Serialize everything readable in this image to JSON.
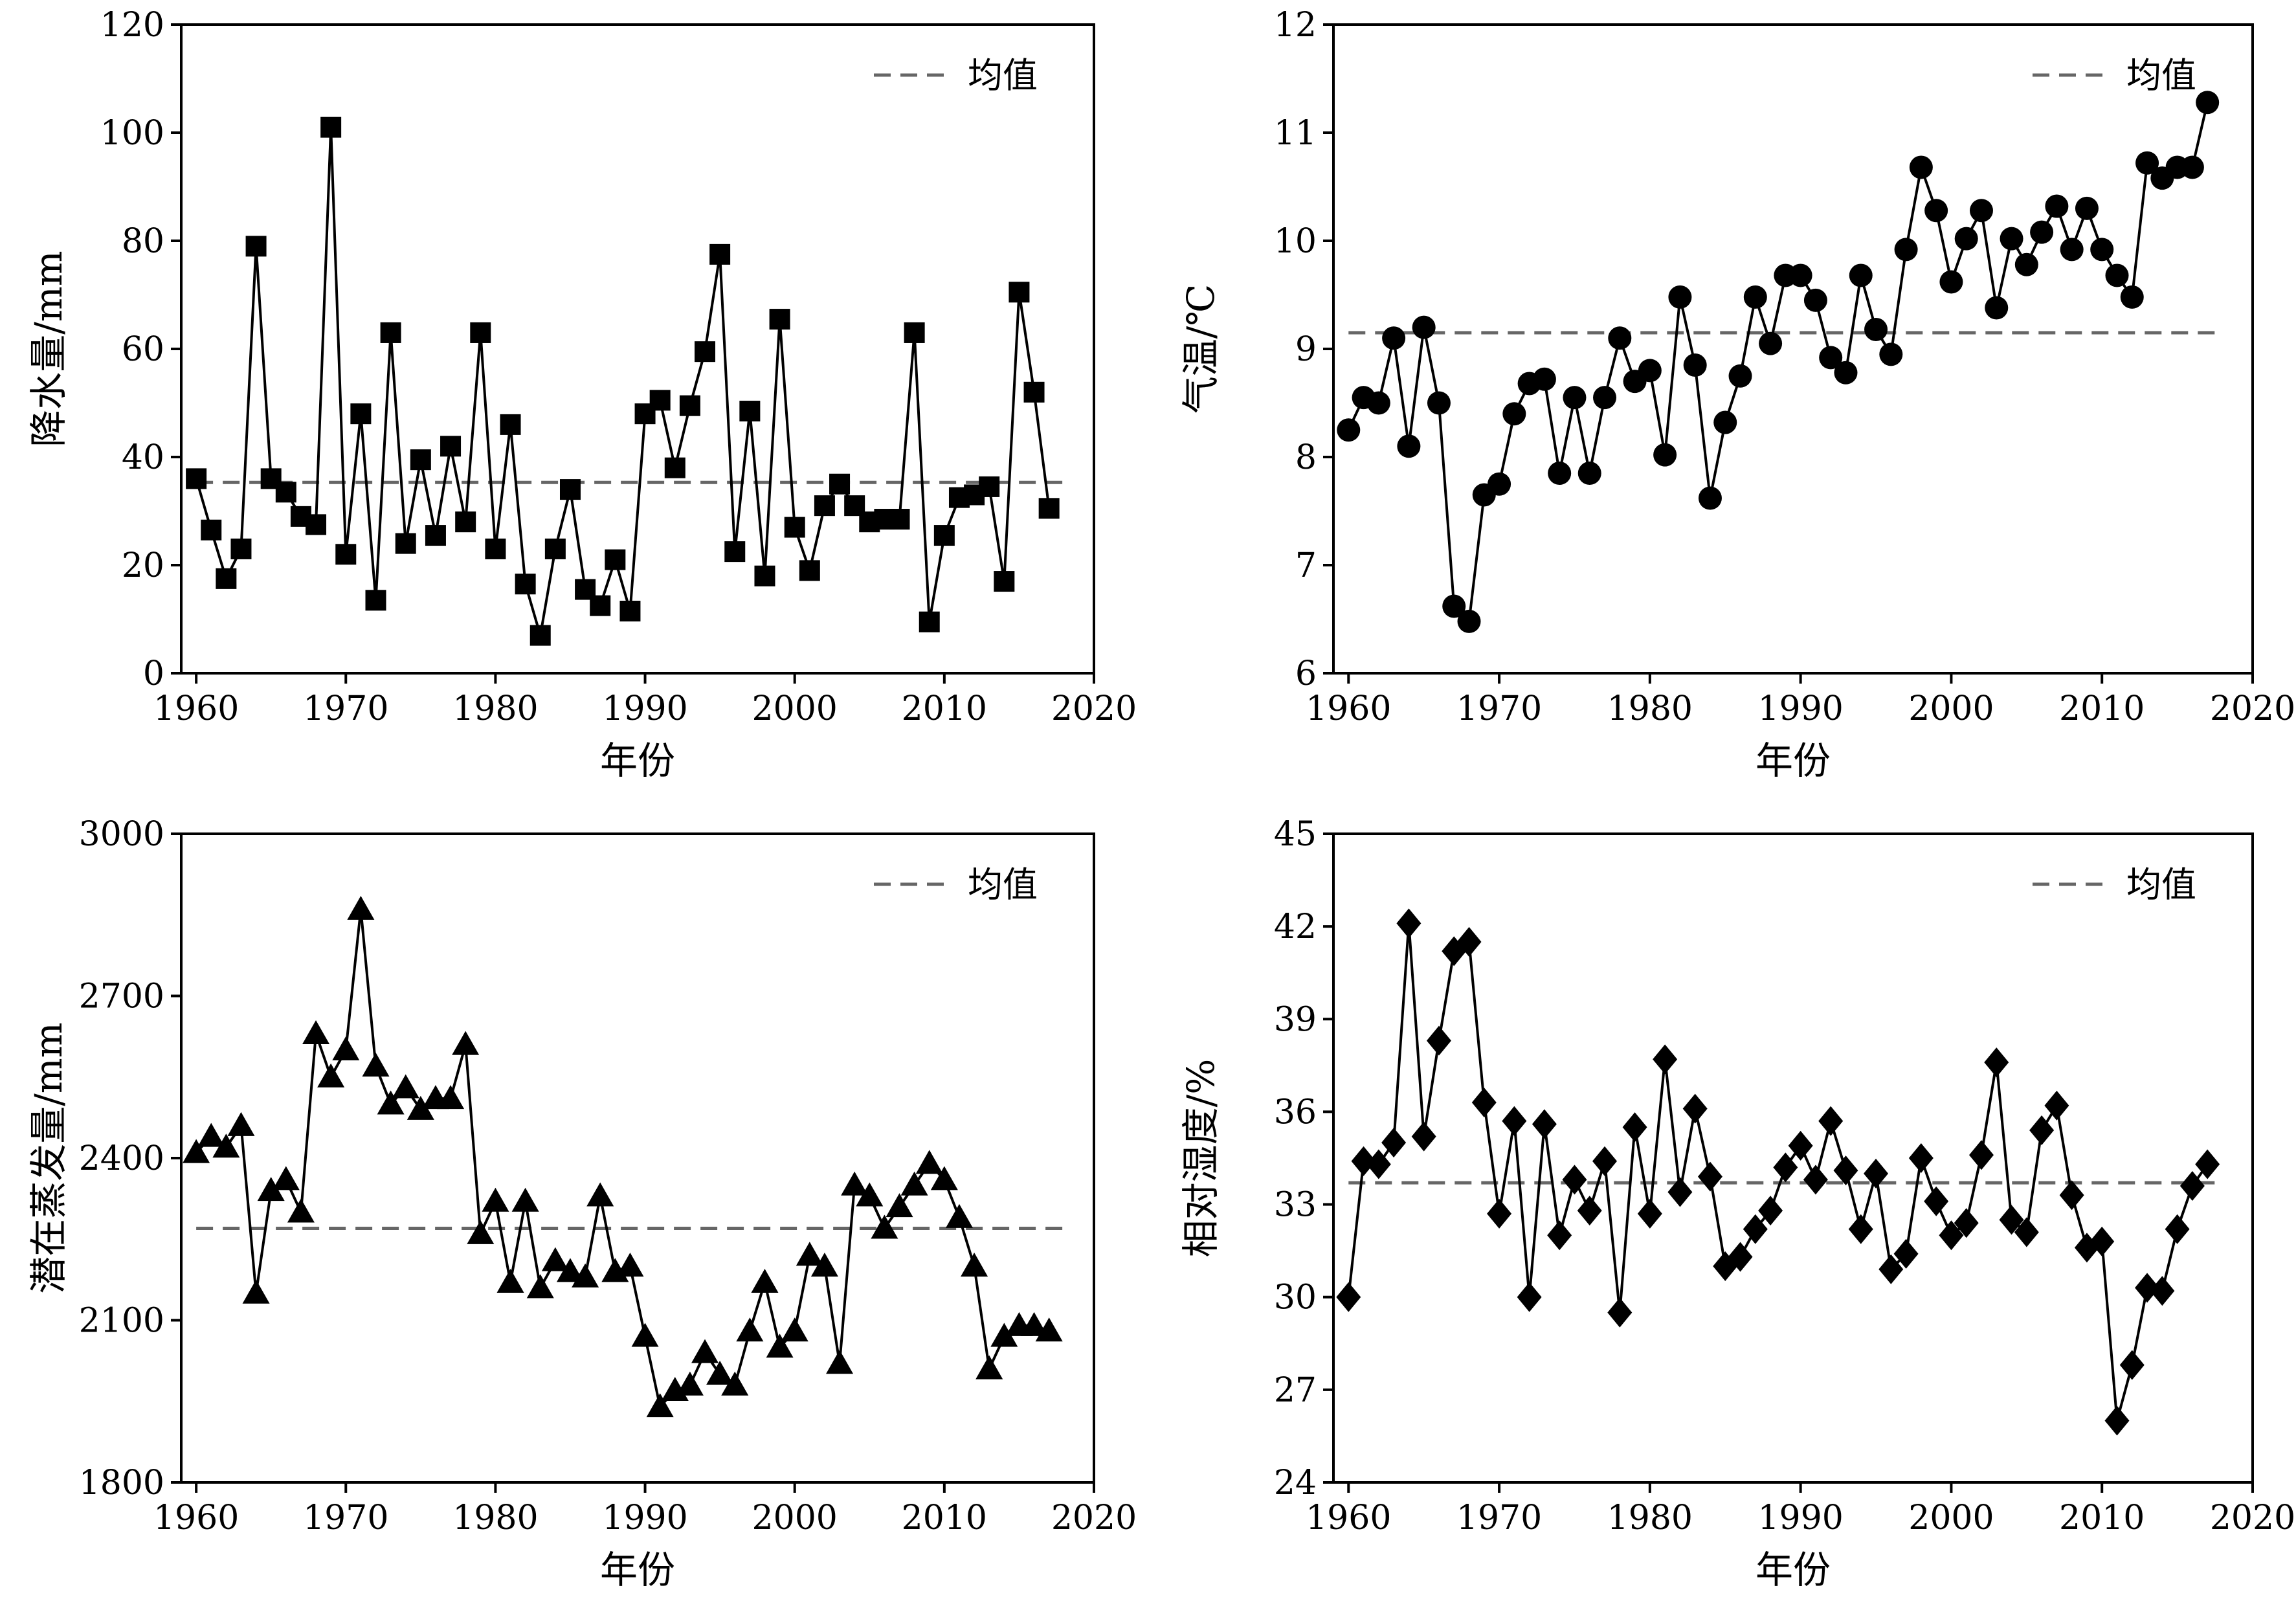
{
  "chart_data": [
    {
      "type": "line",
      "marker": "square",
      "ylabel": "降水量/mm",
      "xlabel": "年份",
      "xlim": [
        1959,
        2020
      ],
      "ylim": [
        0,
        120
      ],
      "xticks": [
        1960,
        1970,
        1980,
        1990,
        2000,
        2010,
        2020
      ],
      "yticks": [
        0,
        20,
        40,
        60,
        80,
        100,
        120
      ],
      "legend": {
        "label": "均值",
        "position": "top-right",
        "style": "dashed"
      },
      "mean": 35.3,
      "grid": false,
      "x": [
        1960,
        1961,
        1962,
        1963,
        1964,
        1965,
        1966,
        1967,
        1968,
        1969,
        1970,
        1971,
        1972,
        1973,
        1974,
        1975,
        1976,
        1977,
        1978,
        1979,
        1980,
        1981,
        1982,
        1983,
        1984,
        1985,
        1986,
        1987,
        1988,
        1989,
        1990,
        1991,
        1992,
        1993,
        1994,
        1995,
        1996,
        1997,
        1998,
        1999,
        2000,
        2001,
        2002,
        2003,
        2004,
        2005,
        2006,
        2007,
        2008,
        2009,
        2010,
        2011,
        2012,
        2013,
        2014,
        2015,
        2016,
        2017
      ],
      "values": [
        36,
        26.5,
        17.5,
        23,
        79,
        36,
        33.5,
        29,
        27.5,
        101,
        22,
        48,
        13.5,
        63,
        24,
        39.5,
        25.5,
        42,
        28,
        63,
        23,
        46,
        16.5,
        7,
        23,
        34,
        15.5,
        12.5,
        21,
        11.5,
        48,
        50.5,
        38,
        49.5,
        59.5,
        77.5,
        22.5,
        48.5,
        18,
        65.5,
        27,
        19,
        31,
        35,
        31,
        28,
        28.5,
        28.5,
        63,
        9.5,
        25.5,
        32.5,
        33,
        34.5,
        17,
        70.5,
        52,
        30.5
      ]
    },
    {
      "type": "line",
      "marker": "circle",
      "ylabel": "气温/℃",
      "xlabel": "年份",
      "xlim": [
        1959,
        2020
      ],
      "ylim": [
        6,
        12
      ],
      "xticks": [
        1960,
        1970,
        1980,
        1990,
        2000,
        2010,
        2020
      ],
      "yticks": [
        6,
        7,
        8,
        9,
        10,
        11,
        12
      ],
      "legend": {
        "label": "均值",
        "position": "top-right",
        "style": "dashed"
      },
      "mean": 9.15,
      "grid": false,
      "x": [
        1960,
        1961,
        1962,
        1963,
        1964,
        1965,
        1966,
        1967,
        1968,
        1969,
        1970,
        1971,
        1972,
        1973,
        1974,
        1975,
        1976,
        1977,
        1978,
        1979,
        1980,
        1981,
        1982,
        1983,
        1984,
        1985,
        1986,
        1987,
        1988,
        1989,
        1990,
        1991,
        1992,
        1993,
        1994,
        1995,
        1996,
        1997,
        1998,
        1999,
        2000,
        2001,
        2002,
        2003,
        2004,
        2005,
        2006,
        2007,
        2008,
        2009,
        2010,
        2011,
        2012,
        2013,
        2014,
        2015,
        2016,
        2017
      ],
      "values": [
        8.25,
        8.55,
        8.5,
        9.1,
        8.1,
        9.2,
        8.5,
        6.62,
        6.48,
        7.65,
        7.75,
        8.4,
        8.68,
        8.72,
        7.85,
        8.55,
        7.85,
        8.55,
        9.1,
        8.7,
        8.8,
        8.02,
        9.48,
        8.85,
        7.62,
        8.32,
        8.75,
        9.48,
        9.05,
        9.68,
        9.68,
        9.45,
        8.92,
        8.78,
        9.68,
        9.18,
        8.95,
        9.92,
        10.68,
        10.28,
        9.62,
        10.02,
        10.28,
        9.38,
        10.02,
        9.78,
        10.08,
        10.32,
        9.92,
        10.3,
        9.92,
        9.68,
        9.48,
        10.72,
        10.58,
        10.68,
        10.68,
        11.28
      ]
    },
    {
      "type": "line",
      "marker": "triangle",
      "ylabel": "潜在蒸发量/mm",
      "xlabel": "年份",
      "xlim": [
        1959,
        2020
      ],
      "ylim": [
        1800,
        3000
      ],
      "xticks": [
        1960,
        1970,
        1980,
        1990,
        2000,
        2010,
        2020
      ],
      "yticks": [
        1800,
        2100,
        2400,
        2700,
        3000
      ],
      "legend": {
        "label": "均值",
        "position": "top-right",
        "style": "dashed"
      },
      "mean": 2270,
      "grid": false,
      "x": [
        1960,
        1961,
        1962,
        1963,
        1964,
        1965,
        1966,
        1967,
        1968,
        1969,
        1970,
        1971,
        1972,
        1973,
        1974,
        1975,
        1976,
        1977,
        1978,
        1979,
        1980,
        1981,
        1982,
        1983,
        1984,
        1985,
        1986,
        1987,
        1988,
        1989,
        1990,
        1991,
        1992,
        1993,
        1994,
        1995,
        1996,
        1997,
        1998,
        1999,
        2000,
        2001,
        2002,
        2003,
        2004,
        2005,
        2006,
        2007,
        2008,
        2009,
        2010,
        2011,
        2012,
        2013,
        2014,
        2015,
        2016,
        2017
      ],
      "values": [
        2410,
        2440,
        2420,
        2460,
        2150,
        2340,
        2360,
        2300,
        2630,
        2550,
        2600,
        2860,
        2570,
        2500,
        2530,
        2490,
        2510,
        2510,
        2610,
        2260,
        2320,
        2170,
        2320,
        2160,
        2210,
        2190,
        2180,
        2330,
        2190,
        2200,
        2070,
        1940,
        1970,
        1980,
        2040,
        2000,
        1980,
        2080,
        2170,
        2050,
        2080,
        2220,
        2200,
        2020,
        2350,
        2330,
        2270,
        2310,
        2350,
        2390,
        2360,
        2290,
        2200,
        2010,
        2070,
        2090,
        2090,
        2080
      ]
    },
    {
      "type": "line",
      "marker": "diamond",
      "ylabel": "相对湿度/%",
      "xlabel": "年份",
      "xlim": [
        1959,
        2020
      ],
      "ylim": [
        24,
        45
      ],
      "xticks": [
        1960,
        1970,
        1980,
        1990,
        2000,
        2010,
        2020
      ],
      "yticks": [
        24,
        27,
        30,
        33,
        36,
        39,
        42,
        45
      ],
      "legend": {
        "label": "均值",
        "position": "top-right",
        "style": "dashed"
      },
      "mean": 33.7,
      "grid": false,
      "x": [
        1960,
        1961,
        1962,
        1963,
        1964,
        1965,
        1966,
        1967,
        1968,
        1969,
        1970,
        1971,
        1972,
        1973,
        1974,
        1975,
        1976,
        1977,
        1978,
        1979,
        1980,
        1981,
        1982,
        1983,
        1984,
        1985,
        1986,
        1987,
        1988,
        1989,
        1990,
        1991,
        1992,
        1993,
        1994,
        1995,
        1996,
        1997,
        1998,
        1999,
        2000,
        2001,
        2002,
        2003,
        2004,
        2005,
        2006,
        2007,
        2008,
        2009,
        2010,
        2011,
        2012,
        2013,
        2014,
        2015,
        2016,
        2017
      ],
      "values": [
        30.0,
        34.4,
        34.3,
        35.0,
        42.1,
        35.2,
        38.3,
        41.2,
        41.5,
        36.3,
        32.7,
        35.7,
        30.0,
        35.6,
        32.0,
        33.8,
        32.8,
        34.4,
        29.5,
        35.5,
        32.7,
        37.7,
        33.4,
        36.1,
        33.9,
        31.0,
        31.3,
        32.2,
        32.8,
        34.2,
        34.9,
        33.8,
        35.7,
        34.1,
        32.2,
        34.0,
        30.9,
        31.4,
        34.5,
        33.1,
        32.0,
        32.4,
        34.6,
        37.6,
        32.5,
        32.1,
        35.4,
        36.2,
        33.3,
        31.6,
        31.8,
        26.0,
        27.8,
        30.3,
        30.2,
        32.2,
        33.6,
        34.3
      ]
    }
  ]
}
